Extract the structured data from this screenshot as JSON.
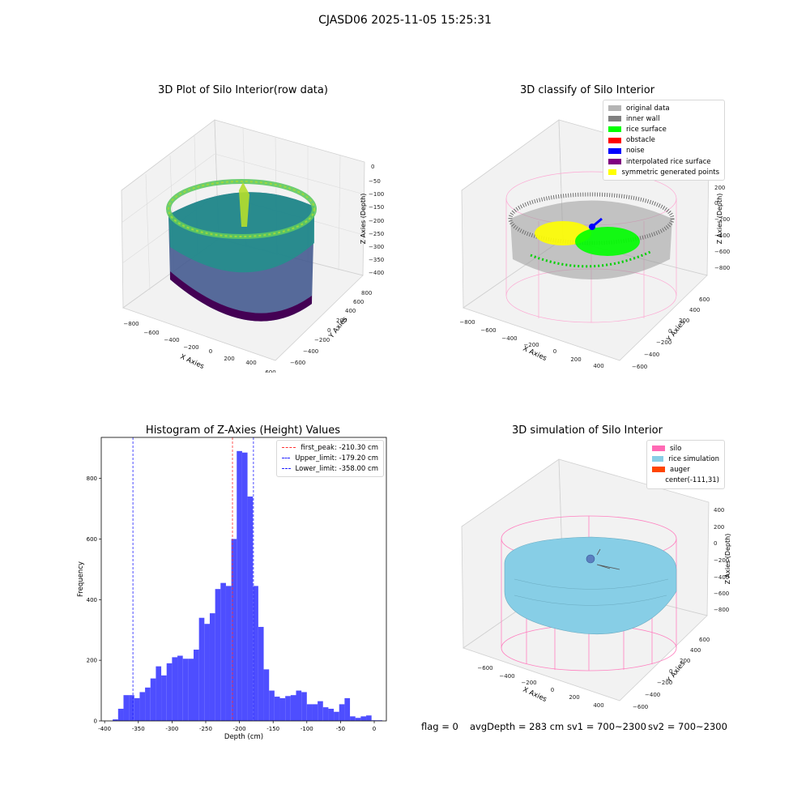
{
  "suptitle": "CJASD06 2025-11-05 15:25:31",
  "footer": {
    "flag": "flag = 0",
    "avg_depth": "avgDepth = 283 cm",
    "sv1": "sv1 = 700~2300",
    "sv2": "sv2 = 700~2300"
  },
  "colors": {
    "hist_bar": "#4e4eff",
    "peak_line": "#ff3030",
    "limit_line": "#2020ff",
    "silo_pink": "#ff69b4",
    "rice_blue": "#87cee6",
    "auger": "#ff4500"
  },
  "chart_data": [
    {
      "type": "scatter",
      "title": "3D Plot of Silo Interior(row data)",
      "xlabel": "X Axies",
      "ylabel": "Y Axies",
      "zlabel": "Z Axies (Depth)",
      "x_ticks": [
        "−800",
        "−600",
        "−400",
        "−200",
        "0",
        "200",
        "400",
        "600"
      ],
      "y_ticks": [
        "−600",
        "−400",
        "−200",
        "0",
        "200",
        "400",
        "600",
        "800"
      ],
      "z_ticks": [
        "0",
        "−50",
        "−100",
        "−150",
        "−200",
        "−250",
        "−300",
        "−350",
        "−400"
      ],
      "colormap": "viridis"
    },
    {
      "type": "scatter",
      "title": "3D classify of Silo Interior",
      "xlabel": "X Axies",
      "ylabel": "Y Axies",
      "zlabel": "Z Axies (Depth)",
      "x_ticks": [
        "−800",
        "−600",
        "−400",
        "−200",
        "0",
        "200",
        "400"
      ],
      "y_ticks": [
        "−600",
        "−400",
        "−200",
        "0",
        "200",
        "400",
        "600"
      ],
      "z_ticks": [
        "200",
        "0",
        "−200",
        "−400",
        "−600",
        "−800"
      ],
      "legend": [
        {
          "label": "original data",
          "color": "#b4b4b4"
        },
        {
          "label": "inner wall",
          "color": "#808080"
        },
        {
          "label": "rice surface",
          "color": "#00ff00"
        },
        {
          "label": "obstacle",
          "color": "#ff0000"
        },
        {
          "label": "noise",
          "color": "#0000ff"
        },
        {
          "label": "interpolated rice surface",
          "color": "#800080"
        },
        {
          "label": "symmetric generated points",
          "color": "#ffff00"
        }
      ],
      "legend_position": "top-right"
    },
    {
      "type": "bar",
      "title": "Histogram of Z-Axies (Height) Values",
      "xlabel": "Depth (cm)",
      "ylabel": "Frequency",
      "xlim": [
        -405,
        18
      ],
      "ylim": [
        0,
        935
      ],
      "x_ticks": [
        -400,
        -350,
        -300,
        -250,
        -200,
        -150,
        -100,
        -50,
        0
      ],
      "y_ticks": [
        0,
        200,
        400,
        600,
        800
      ],
      "bin_start": -388,
      "bin_width": 8,
      "values": [
        5,
        40,
        85,
        85,
        75,
        95,
        110,
        140,
        180,
        150,
        190,
        210,
        215,
        205,
        205,
        235,
        340,
        320,
        355,
        435,
        455,
        445,
        600,
        890,
        885,
        740,
        445,
        310,
        170,
        100,
        80,
        75,
        82,
        85,
        100,
        95,
        55,
        55,
        65,
        45,
        40,
        30,
        55,
        75,
        15,
        10,
        15,
        18,
        2,
        2
      ],
      "vlines": [
        {
          "x": -210.3,
          "label": "first_peak: -210.30 cm",
          "style": "red"
        },
        {
          "x": -179.2,
          "label": "Upper_limit: -179.20 cm",
          "style": "blue"
        },
        {
          "x": -358.0,
          "label": "Lower_limit: -358.00 cm",
          "style": "blue"
        }
      ],
      "legend_position": "top-right",
      "grid": false
    },
    {
      "type": "area",
      "title": "3D simulation of Silo Interior",
      "xlabel": "X Axies",
      "ylabel": "Y Axies",
      "zlabel": "Z Axies (Depth)",
      "x_ticks": [
        "−600",
        "−400",
        "−200",
        "0",
        "200",
        "400"
      ],
      "y_ticks": [
        "−600",
        "−400",
        "−200",
        "0",
        "200",
        "400",
        "600"
      ],
      "z_ticks": [
        "400",
        "200",
        "0",
        "−200",
        "−400",
        "−600",
        "−800"
      ],
      "legend": [
        {
          "label": "silo",
          "color": "#ff69b4"
        },
        {
          "label": "rice simulation",
          "color": "#87cee6"
        },
        {
          "label": "auger",
          "color": "#ff4500"
        },
        {
          "label": "center(-111,31)",
          "color": ""
        }
      ],
      "legend_position": "top-right"
    }
  ]
}
